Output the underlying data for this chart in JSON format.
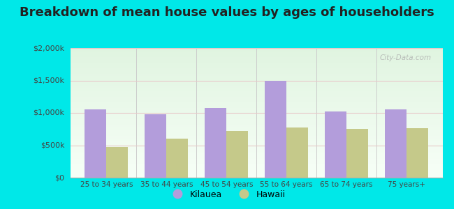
{
  "title": "Breakdown of mean house values by ages of householders",
  "categories": [
    "25 to 34 years",
    "35 to 44 years",
    "45 to 54 years",
    "55 to 64 years",
    "65 to 74 years",
    "75 years+"
  ],
  "kilauea_values": [
    1050000,
    975000,
    1075000,
    1500000,
    1025000,
    1050000
  ],
  "hawaii_values": [
    475000,
    600000,
    725000,
    775000,
    750000,
    760000
  ],
  "kilauea_color": "#b39ddb",
  "hawaii_color": "#c5c98a",
  "background_outer": "#00e8e8",
  "ylim": [
    0,
    2000000
  ],
  "yticks": [
    0,
    500000,
    1000000,
    1500000,
    2000000
  ],
  "ytick_labels": [
    "$0",
    "$500k",
    "$1,000k",
    "$1,500k",
    "$2,000k"
  ],
  "legend_kilauea": "Kilauea",
  "legend_hawaii": "Hawaii",
  "title_fontsize": 13,
  "bar_width": 0.36
}
